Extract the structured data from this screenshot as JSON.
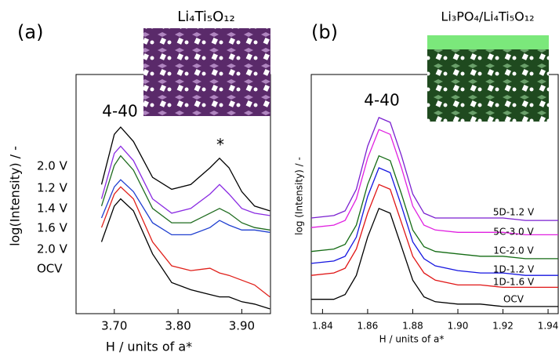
{
  "chart_data": [
    {
      "type": "line",
      "label": "(a)",
      "title": "Li₄Ti₅O₁₂",
      "x_label": "H / units of a*",
      "y_label": "log(Intensity) / -",
      "annotations": [
        "4-40",
        "*"
      ],
      "x": [
        3.68,
        3.7,
        3.71,
        3.73,
        3.76,
        3.79,
        3.82,
        3.85,
        3.865,
        3.88,
        3.9,
        3.92,
        3.944
      ],
      "xlim": [
        3.64,
        3.945
      ],
      "ylim": [
        0,
        100
      ],
      "xticks": [
        {
          "value": 3.7,
          "label": "3.70"
        },
        {
          "value": 3.8,
          "label": "3.80"
        },
        {
          "value": 3.9,
          "label": "3.90"
        }
      ],
      "series": [
        {
          "name": "2.0 V",
          "color": "#000000",
          "values": [
            54,
            75,
            78,
            72,
            57,
            52,
            54,
            61,
            65,
            61,
            51,
            45,
            43
          ]
        },
        {
          "name": "1.2 V",
          "color": "#8a2be2",
          "values": [
            48,
            67,
            70,
            64,
            48,
            42,
            44,
            50,
            54,
            50,
            44,
            42,
            41
          ]
        },
        {
          "name": "1.4 V",
          "color": "#1e6b1e",
          "values": [
            45,
            62,
            66,
            60,
            44,
            38,
            38,
            42,
            44,
            42,
            38,
            36,
            35
          ]
        },
        {
          "name": "1.6 V",
          "color": "#1f3fd0",
          "values": [
            40,
            53,
            56,
            51,
            38,
            33,
            33,
            36,
            39,
            37,
            35,
            35,
            34
          ]
        },
        {
          "name": "2.0 V",
          "color": "#e0201a",
          "values": [
            36,
            50,
            53,
            48,
            30,
            20,
            18,
            19,
            17,
            16,
            14,
            12,
            7
          ]
        },
        {
          "name": "OCV",
          "color": "#000000",
          "values": [
            30,
            45,
            48,
            43,
            25,
            13,
            10,
            8,
            7,
            7,
            5,
            4,
            2
          ]
        }
      ]
    },
    {
      "type": "line",
      "label": "(b)",
      "title": "Li₃PO₄/Li₄Ti₅O₁₂",
      "x_label": "H / units of a*",
      "y_label": "log (Intensity) / -",
      "annotations": [
        "4-40"
      ],
      "x": [
        1.835,
        1.845,
        1.85,
        1.855,
        1.86,
        1.865,
        1.87,
        1.875,
        1.88,
        1.885,
        1.89,
        1.9,
        1.91,
        1.92,
        1.93,
        1.94,
        1.9445
      ],
      "xlim": [
        1.835,
        1.9445
      ],
      "ylim": [
        0,
        100
      ],
      "xticks": [
        1.84,
        1.86,
        1.88,
        {
          "value": 1.9,
          "label": "1.90"
        },
        1.92,
        1.94
      ],
      "series": [
        {
          "name": "5D-1.2 V",
          "color": "#7a1fd0",
          "values": [
            40,
            41,
            43,
            52,
            70,
            82,
            80,
            66,
            50,
            42,
            40,
            40,
            40,
            40,
            39,
            39,
            39
          ]
        },
        {
          "name": "5C-3.0 V",
          "color": "#e020e0",
          "values": [
            36,
            37,
            39,
            48,
            65,
            77,
            75,
            61,
            45,
            37,
            35,
            34,
            34,
            34,
            33,
            33,
            33
          ]
        },
        {
          "name": "1C-2.0 V",
          "color": "#146b14",
          "values": [
            26,
            27,
            29,
            37,
            54,
            66,
            64,
            50,
            35,
            28,
            26,
            25,
            24,
            24,
            23,
            23,
            23
          ]
        },
        {
          "name": "1D-1.2 V",
          "color": "#1515e0",
          "values": [
            21,
            22,
            24,
            32,
            49,
            61,
            59,
            45,
            30,
            23,
            20,
            18,
            17,
            17,
            16,
            16,
            16
          ]
        },
        {
          "name": "1D-1.6 V",
          "color": "#e01515",
          "values": [
            16,
            17,
            19,
            27,
            42,
            54,
            52,
            38,
            24,
            17,
            14,
            12,
            12,
            11,
            11,
            11,
            11
          ]
        },
        {
          "name": "OCV",
          "color": "#000000",
          "values": [
            6,
            6,
            8,
            16,
            32,
            44,
            42,
            28,
            14,
            7,
            5,
            4,
            4,
            3,
            3,
            3,
            3
          ]
        }
      ]
    }
  ]
}
